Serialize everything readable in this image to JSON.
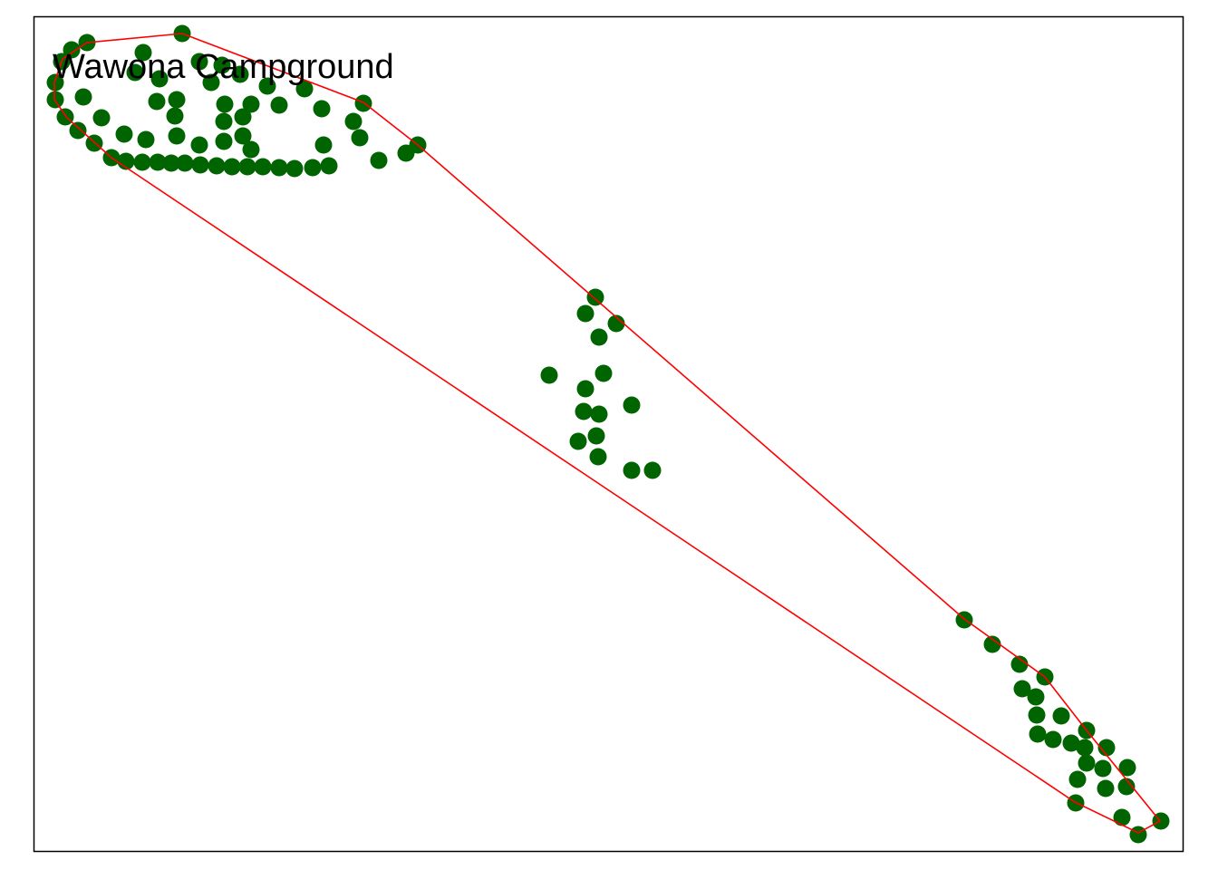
{
  "chart_data": {
    "type": "scatter",
    "title": "Wawona Campground",
    "xlabel": "",
    "ylabel": "",
    "axes_visible": false,
    "grid": false,
    "legend": "none",
    "marker_color": "#006400",
    "hull_color": "#FF0000",
    "frame_color": "#000000",
    "points": [
      [
        201,
        37
      ],
      [
        96,
        47
      ],
      [
        79,
        55
      ],
      [
        68,
        68
      ],
      [
        158,
        58
      ],
      [
        61,
        91
      ],
      [
        61,
        110
      ],
      [
        72,
        129
      ],
      [
        86,
        144
      ],
      [
        104,
        158
      ],
      [
        123,
        174
      ],
      [
        139,
        178
      ],
      [
        157,
        179
      ],
      [
        174,
        179
      ],
      [
        189,
        180
      ],
      [
        204,
        180
      ],
      [
        221,
        182
      ],
      [
        239,
        183
      ],
      [
        256,
        184
      ],
      [
        273,
        184
      ],
      [
        290,
        184
      ],
      [
        308,
        185
      ],
      [
        325,
        186
      ],
      [
        345,
        185
      ],
      [
        363,
        183
      ],
      [
        149,
        80
      ],
      [
        176,
        87
      ],
      [
        92,
        107
      ],
      [
        112,
        130
      ],
      [
        137,
        148
      ],
      [
        161,
        154
      ],
      [
        195,
        110
      ],
      [
        173,
        112
      ],
      [
        193,
        128
      ],
      [
        195,
        150
      ],
      [
        220,
        160
      ],
      [
        247,
        156
      ],
      [
        247,
        134
      ],
      [
        248,
        115
      ],
      [
        268,
        129
      ],
      [
        277,
        115
      ],
      [
        233,
        91
      ],
      [
        265,
        82
      ],
      [
        295,
        95
      ],
      [
        308,
        116
      ],
      [
        336,
        98
      ],
      [
        355,
        120
      ],
      [
        357,
        160
      ],
      [
        268,
        150
      ],
      [
        277,
        165
      ],
      [
        390,
        134
      ],
      [
        401,
        114
      ],
      [
        397,
        152
      ],
      [
        418,
        177
      ],
      [
        448,
        169
      ],
      [
        461,
        160
      ],
      [
        220,
        68
      ],
      [
        245,
        72
      ],
      [
        657,
        328
      ],
      [
        646,
        346
      ],
      [
        680,
        357
      ],
      [
        661,
        372
      ],
      [
        606,
        414
      ],
      [
        666,
        412
      ],
      [
        646,
        429
      ],
      [
        697,
        447
      ],
      [
        644,
        454
      ],
      [
        661,
        457
      ],
      [
        638,
        487
      ],
      [
        658,
        481
      ],
      [
        660,
        504
      ],
      [
        697,
        519
      ],
      [
        720,
        519
      ],
      [
        1064,
        684
      ],
      [
        1095,
        711
      ],
      [
        1125,
        733
      ],
      [
        1153,
        747
      ],
      [
        1128,
        760
      ],
      [
        1143,
        769
      ],
      [
        1144,
        789
      ],
      [
        1171,
        790
      ],
      [
        1145,
        810
      ],
      [
        1162,
        816
      ],
      [
        1199,
        806
      ],
      [
        1182,
        820
      ],
      [
        1197,
        825
      ],
      [
        1221,
        825
      ],
      [
        1199,
        842
      ],
      [
        1217,
        848
      ],
      [
        1189,
        860
      ],
      [
        1244,
        847
      ],
      [
        1220,
        870
      ],
      [
        1243,
        868
      ],
      [
        1187,
        886
      ],
      [
        1238,
        902
      ],
      [
        1256,
        921
      ],
      [
        1281,
        906
      ]
    ],
    "hull": [
      [
        201,
        37
      ],
      [
        401,
        113
      ],
      [
        461,
        160
      ],
      [
        1064,
        683
      ],
      [
        1153,
        747
      ],
      [
        1199,
        806
      ],
      [
        1280,
        906
      ],
      [
        1256,
        919
      ],
      [
        1186,
        885
      ],
      [
        123,
        174
      ],
      [
        74,
        130
      ],
      [
        60,
        110
      ],
      [
        60,
        91
      ],
      [
        69,
        65
      ],
      [
        96,
        47
      ],
      [
        201,
        37
      ]
    ],
    "xlim": [
      37,
      1306
    ],
    "ylim": [
      940,
      18
    ]
  }
}
